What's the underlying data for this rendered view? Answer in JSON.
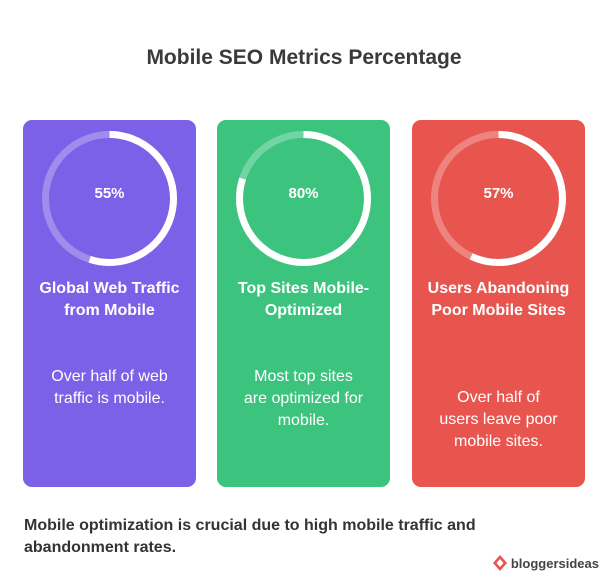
{
  "title": "Mobile SEO Metrics Percentage",
  "chart_data": {
    "type": "donut",
    "items": [
      {
        "value": 55,
        "display": "55%",
        "label": "Global Web Traffic from Mobile",
        "description": "Over half of web traffic is mobile.",
        "color": "#7B61E8"
      },
      {
        "value": 80,
        "display": "80%",
        "label": "Top Sites Mobile-Optimized",
        "description": "Most top sites are optimized for mobile.",
        "color": "#3CC47E"
      },
      {
        "value": 57,
        "display": "57%",
        "label": "Users Abandoning Poor Mobile Sites",
        "description": "Over half of users leave poor mobile sites.",
        "color": "#E8554F"
      }
    ]
  },
  "footer": "Mobile optimization is crucial due to high mobile traffic and abandonment rates.",
  "brand": {
    "name": "bloggersideas",
    "icon": "brand-logo-icon"
  }
}
